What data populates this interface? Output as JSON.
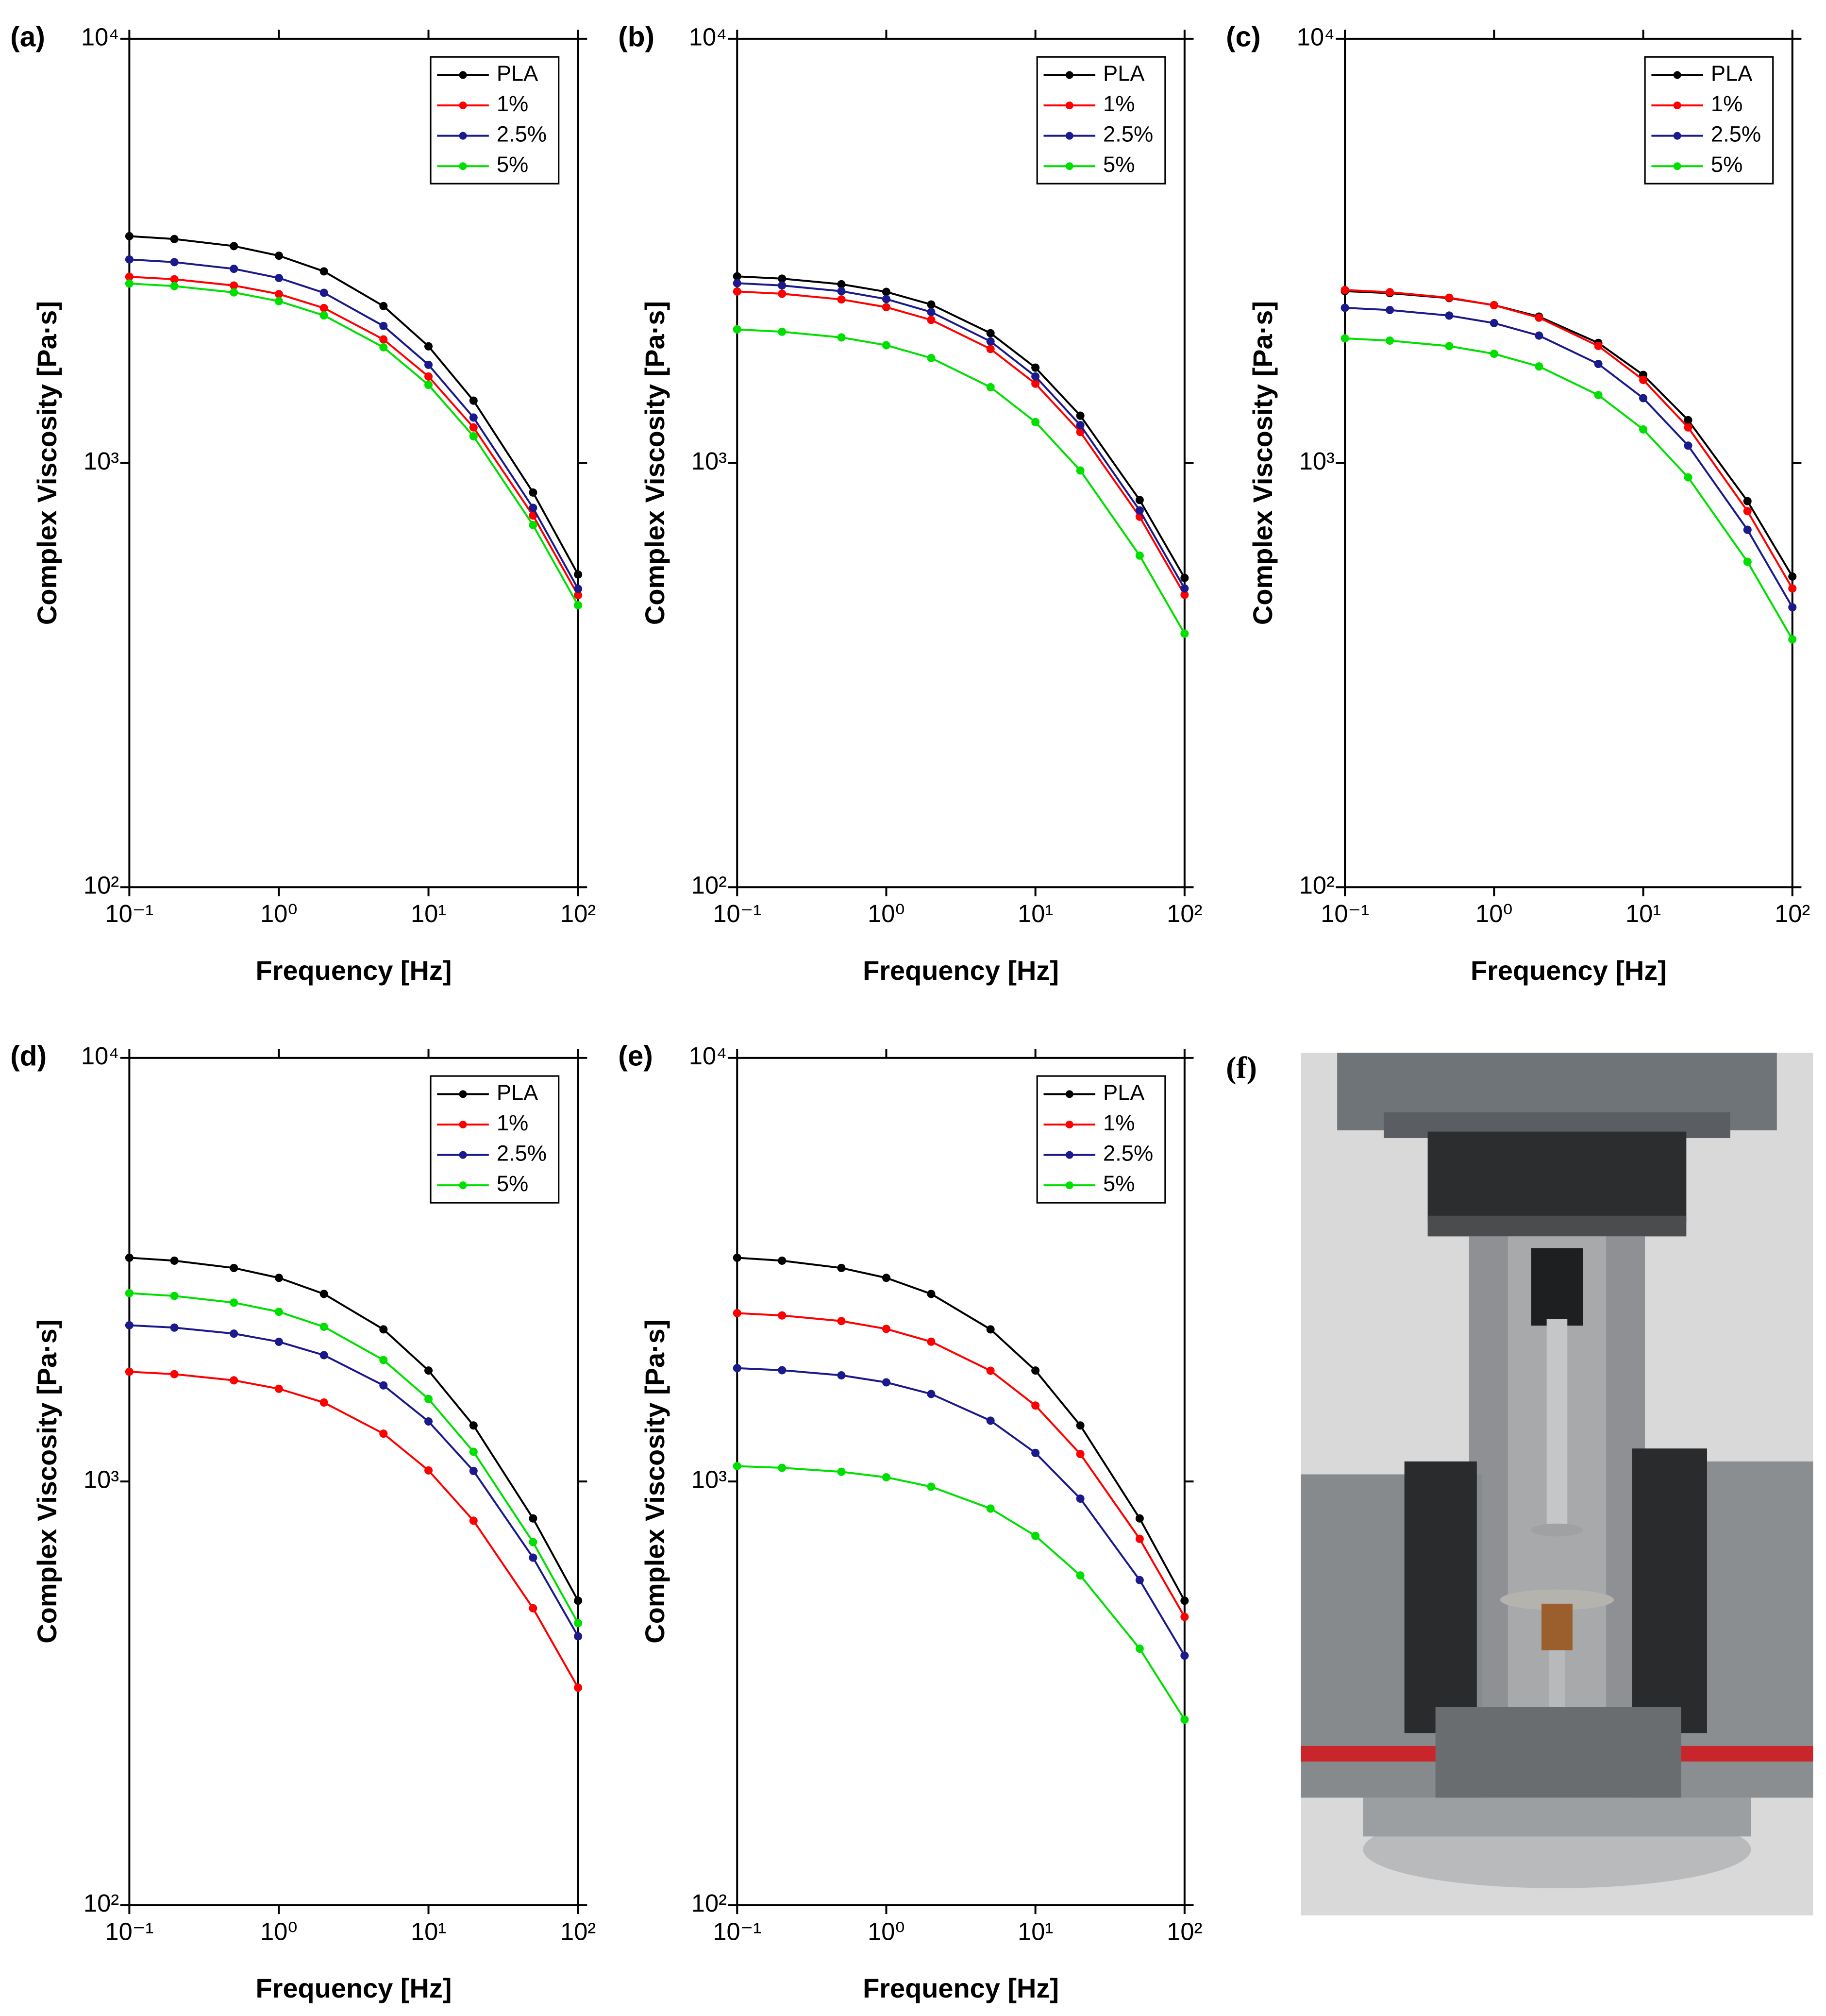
{
  "chart_data": [
    {
      "type": "line",
      "panel_label": "(a)",
      "x_label": "Frequency [Hz]",
      "y_label": "Complex Viscosity [Pa·s]",
      "log_x": true,
      "log_y": true,
      "legend": "upper right",
      "xlim": [
        0.1,
        100
      ],
      "ylim": [
        100,
        10000
      ],
      "xticks": [
        {
          "value": 0.1,
          "label": "10⁻¹"
        },
        {
          "value": 1,
          "label": "10⁰"
        },
        {
          "value": 10,
          "label": "10¹"
        },
        {
          "value": 100,
          "label": "10²"
        }
      ],
      "yticks": [
        {
          "value": 100,
          "label": "10²"
        },
        {
          "value": 1000,
          "label": "10³"
        },
        {
          "value": 10000,
          "label": "10⁴"
        }
      ],
      "x": [
        0.1,
        0.2,
        0.5,
        1,
        2,
        5,
        10,
        20,
        50,
        100
      ],
      "series": [
        {
          "name": "PLA",
          "color": "#000000",
          "values": [
            3426,
            3373,
            3246,
            3081,
            2830,
            2344,
            1884,
            1403,
            852,
            546
          ]
        },
        {
          "name": "1%",
          "color": "#ff0000",
          "values": [
            2748,
            2711,
            2621,
            2502,
            2319,
            1956,
            1599,
            1213,
            752,
            488
          ]
        },
        {
          "name": "2.5%",
          "color": "#1a1a8c",
          "values": [
            3019,
            2975,
            2869,
            2730,
            2519,
            2104,
            1704,
            1280,
            784,
            505
          ]
        },
        {
          "name": "5%",
          "color": "#00e000",
          "values": [
            2649,
            2612,
            2524,
            2407,
            2228,
            1874,
            1528,
            1156,
            714,
            462
          ]
        }
      ]
    },
    {
      "type": "line",
      "panel_label": "(b)",
      "x_label": "Frequency [Hz]",
      "y_label": "Complex Viscosity [Pa·s]",
      "log_x": true,
      "log_y": true,
      "legend": "upper right",
      "xlim": [
        0.1,
        100
      ],
      "ylim": [
        100,
        10000
      ],
      "xticks": [
        {
          "value": 0.1,
          "label": "10⁻¹"
        },
        {
          "value": 1,
          "label": "10⁰"
        },
        {
          "value": 10,
          "label": "10¹"
        },
        {
          "value": 100,
          "label": "10²"
        }
      ],
      "yticks": [
        {
          "value": 100,
          "label": "10²"
        },
        {
          "value": 1000,
          "label": "10³"
        },
        {
          "value": 10000,
          "label": "10⁴"
        }
      ],
      "x": [
        0.1,
        0.2,
        0.5,
        1,
        2,
        5,
        10,
        20,
        50,
        100
      ],
      "series": [
        {
          "name": "PLA",
          "color": "#000000",
          "values": [
            2754,
            2720,
            2639,
            2532,
            2364,
            2023,
            1678,
            1293,
            818,
            536
          ]
        },
        {
          "name": "1%",
          "color": "#ff0000",
          "values": [
            2537,
            2506,
            2430,
            2330,
            2174,
            1857,
            1538,
            1183,
            747,
            489
          ]
        },
        {
          "name": "2.5%",
          "color": "#1a1a8c",
          "values": [
            2654,
            2621,
            2541,
            2435,
            2269,
            1935,
            1600,
            1228,
            773,
            506
          ]
        },
        {
          "name": "5%",
          "color": "#00e000",
          "values": [
            2065,
            2039,
            1977,
            1895,
            1768,
            1509,
            1249,
            960,
            605,
            396
          ]
        }
      ]
    },
    {
      "type": "line",
      "panel_label": "(c)",
      "x_label": "Frequency [Hz]",
      "y_label": "Complex Viscosity [Pa·s]",
      "log_x": true,
      "log_y": true,
      "legend": "upper right",
      "xlim": [
        0.1,
        100
      ],
      "ylim": [
        100,
        10000
      ],
      "xticks": [
        {
          "value": 0.1,
          "label": "10⁻¹"
        },
        {
          "value": 1,
          "label": "10⁰"
        },
        {
          "value": 10,
          "label": "10¹"
        },
        {
          "value": 100,
          "label": "10²"
        }
      ],
      "yticks": [
        {
          "value": 100,
          "label": "10²"
        },
        {
          "value": 1000,
          "label": "10³"
        },
        {
          "value": 10000,
          "label": "10⁴"
        }
      ],
      "x": [
        0.1,
        0.2,
        0.5,
        1,
        2,
        5,
        10,
        20,
        50,
        100
      ],
      "series": [
        {
          "name": "PLA",
          "color": "#000000",
          "values": [
            2542,
            2514,
            2447,
            2356,
            2214,
            1919,
            1613,
            1262,
            813,
            540
          ]
        },
        {
          "name": "1%",
          "color": "#ff0000",
          "values": [
            2558,
            2527,
            2453,
            2355,
            2201,
            1888,
            1570,
            1213,
            770,
            506
          ]
        },
        {
          "name": "2.5%",
          "color": "#1a1a8c",
          "values": [
            2322,
            2294,
            2226,
            2137,
            1997,
            1712,
            1422,
            1099,
            696,
            457
          ]
        },
        {
          "name": "5%",
          "color": "#00e000",
          "values": [
            1967,
            1943,
            1886,
            1809,
            1689,
            1446,
            1200,
            925,
            585,
            384
          ]
        }
      ]
    },
    {
      "type": "line",
      "panel_label": "(d)",
      "x_label": "Frequency [Hz]",
      "y_label": "Complex Viscosity [Pa·s]",
      "log_x": true,
      "log_y": true,
      "legend": "upper right",
      "xlim": [
        0.1,
        100
      ],
      "ylim": [
        100,
        10000
      ],
      "xticks": [
        {
          "value": 0.1,
          "label": "10⁻¹"
        },
        {
          "value": 1,
          "label": "10⁰"
        },
        {
          "value": 10,
          "label": "10¹"
        },
        {
          "value": 100,
          "label": "10²"
        }
      ],
      "yticks": [
        {
          "value": 100,
          "label": "10²"
        },
        {
          "value": 1000,
          "label": "10³"
        },
        {
          "value": 10000,
          "label": "10⁴"
        }
      ],
      "x": [
        0.1,
        0.2,
        0.5,
        1,
        2,
        5,
        10,
        20,
        50,
        100
      ],
      "series": [
        {
          "name": "PLA",
          "color": "#000000",
          "values": [
            3375,
            3321,
            3192,
            3025,
            2772,
            2286,
            1828,
            1356,
            818,
            523
          ]
        },
        {
          "name": "1%",
          "color": "#ff0000",
          "values": [
            1816,
            1792,
            1733,
            1655,
            1536,
            1297,
            1062,
            808,
            502,
            326
          ]
        },
        {
          "name": "2.5%",
          "color": "#1a1a8c",
          "values": [
            2338,
            2308,
            2234,
            2137,
            1987,
            1686,
            1386,
            1059,
            661,
            431
          ]
        },
        {
          "name": "5%",
          "color": "#00e000",
          "values": [
            2783,
            2742,
            2644,
            2515,
            2319,
            1935,
            1566,
            1175,
            719,
            463
          ]
        }
      ]
    },
    {
      "type": "line",
      "panel_label": "(e)",
      "x_label": "Frequency [Hz]",
      "y_label": "Complex Viscosity [Pa·s]",
      "log_x": true,
      "log_y": true,
      "legend": "upper right",
      "xlim": [
        0.1,
        100
      ],
      "ylim": [
        100,
        10000
      ],
      "xticks": [
        {
          "value": 0.1,
          "label": "10⁻¹"
        },
        {
          "value": 1,
          "label": "10⁰"
        },
        {
          "value": 10,
          "label": "10¹"
        },
        {
          "value": 100,
          "label": "10²"
        }
      ],
      "yticks": [
        {
          "value": 100,
          "label": "10²"
        },
        {
          "value": 1000,
          "label": "10³"
        },
        {
          "value": 10000,
          "label": "10⁴"
        }
      ],
      "x": [
        0.1,
        0.2,
        0.5,
        1,
        2,
        5,
        10,
        20,
        50,
        100
      ],
      "series": [
        {
          "name": "PLA",
          "color": "#000000",
          "values": [
            3375,
            3321,
            3192,
            3025,
            2772,
            2286,
            1828,
            1356,
            818,
            523
          ]
        },
        {
          "name": "1%",
          "color": "#ff0000",
          "values": [
            2497,
            2466,
            2392,
            2292,
            2138,
            1826,
            1511,
            1161,
            732,
            479
          ]
        },
        {
          "name": "2.5%",
          "color": "#1a1a8c",
          "values": [
            1852,
            1831,
            1781,
            1714,
            1609,
            1392,
            1168,
            911,
            585,
            388
          ]
        },
        {
          "name": "5%",
          "color": "#00e000",
          "values": [
            1087,
            1077,
            1054,
            1023,
            972,
            863,
            744,
            600,
            403,
            274
          ]
        }
      ]
    }
  ],
  "photo": {
    "panel_label": "(f)"
  }
}
